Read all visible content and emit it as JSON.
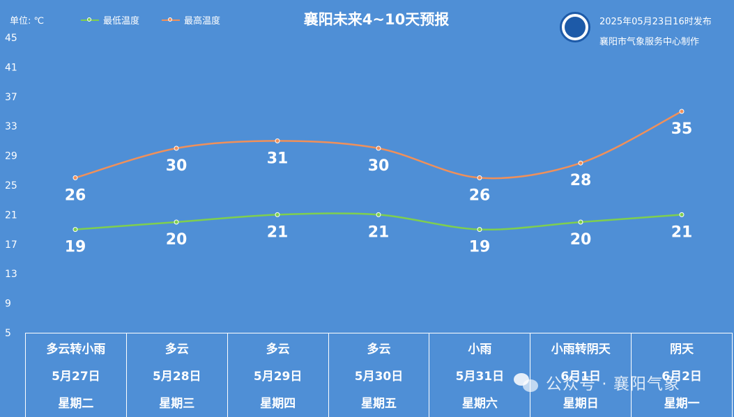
{
  "header": {
    "unit": "单位: ℃",
    "title": "襄阳未来4~10天预报",
    "publish_time": "2025年05月23日16时发布",
    "publisher": "襄阳市气象服务中心制作",
    "logo_text": "襄阳气象"
  },
  "watermark": "公众号 · 襄阳气象",
  "colors": {
    "background": "#4f8fd6",
    "low": "#7fcf4e",
    "high": "#f0905a"
  },
  "chart_data": {
    "type": "line",
    "title": "襄阳未来4~10天预报",
    "ylabel": "单位: ℃",
    "ylim": [
      5,
      45
    ],
    "yticks": [
      5,
      9,
      13,
      17,
      21,
      25,
      29,
      33,
      37,
      41,
      45
    ],
    "grid": false,
    "legend": "top-left",
    "categories": [
      "5月27日",
      "5月28日",
      "5月29日",
      "5月30日",
      "5月31日",
      "6月1日",
      "6月2日"
    ],
    "series": [
      {
        "name": "最低温度",
        "values": [
          19,
          20,
          21,
          21,
          19,
          20,
          21
        ]
      },
      {
        "name": "最高温度",
        "values": [
          26,
          30,
          31,
          30,
          26,
          28,
          35
        ]
      }
    ]
  },
  "days": [
    {
      "weather": "多云转小雨",
      "date": "5月27日",
      "weekday": "星期二"
    },
    {
      "weather": "多云",
      "date": "5月28日",
      "weekday": "星期三"
    },
    {
      "weather": "多云",
      "date": "5月29日",
      "weekday": "星期四"
    },
    {
      "weather": "多云",
      "date": "5月30日",
      "weekday": "星期五"
    },
    {
      "weather": "小雨",
      "date": "5月31日",
      "weekday": "星期六"
    },
    {
      "weather": "小雨转阴天",
      "date": "6月1日",
      "weekday": "星期日"
    },
    {
      "weather": "阴天",
      "date": "6月2日",
      "weekday": "星期一"
    }
  ]
}
